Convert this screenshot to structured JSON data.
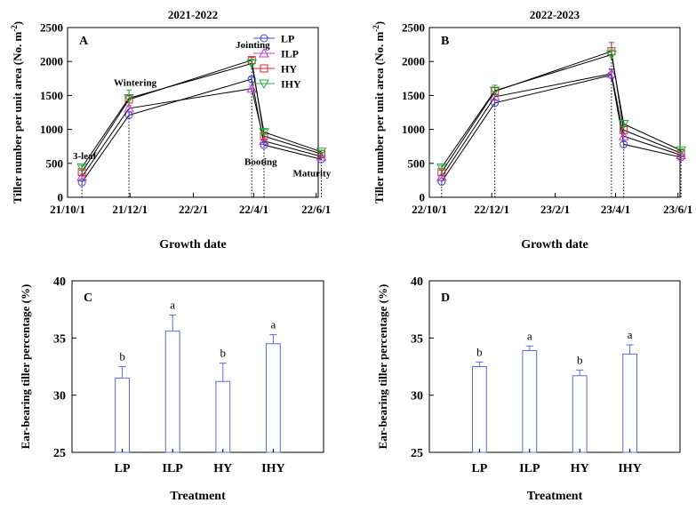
{
  "colors": {
    "LP": "#3b47c4",
    "ILP": "#c43ad1",
    "HY": "#d12a2a",
    "IHY": "#27a83a",
    "bar_stroke": "#5b6bdd",
    "line": "#000000"
  },
  "chart_data": [
    {
      "id": "A",
      "type": "line",
      "panel_label": "A",
      "title": "2021-2022",
      "xlabel": "Growth date",
      "ylabel": "Tiller number per unit area (No. m",
      "ylabel_sup": "-2",
      "ylabel_end": ")",
      "ylim": [
        0,
        2500
      ],
      "yticks": [
        0,
        500,
        1000,
        1500,
        2000,
        2500
      ],
      "xlim": [
        0,
        245
      ],
      "xticks": [
        {
          "day": 0,
          "label": "21/10/1"
        },
        {
          "day": 61,
          "label": "21/12/1"
        },
        {
          "day": 123,
          "label": "22/2/1"
        },
        {
          "day": 182,
          "label": "22/4/1"
        },
        {
          "day": 243,
          "label": "22/6/1"
        }
      ],
      "x": [
        14,
        60,
        180,
        192,
        248
      ],
      "stages": [
        "3-leaf",
        "Wintering",
        "Jointing",
        "Booting",
        "Maturity"
      ],
      "series": [
        {
          "name": "LP",
          "marker": "circle",
          "values": [
            220,
            1210,
            1740,
            770,
            560
          ],
          "errors": [
            20,
            50,
            30,
            30,
            20
          ]
        },
        {
          "name": "ILP",
          "marker": "triangle-up",
          "values": [
            300,
            1310,
            1600,
            830,
            600
          ],
          "errors": [
            20,
            40,
            50,
            30,
            20
          ]
        },
        {
          "name": "HY",
          "marker": "square",
          "values": [
            370,
            1440,
            2020,
            900,
            640
          ],
          "errors": [
            30,
            60,
            40,
            30,
            20
          ]
        },
        {
          "name": "IHY",
          "marker": "triangle-down",
          "values": [
            440,
            1460,
            1970,
            960,
            670
          ],
          "errors": [
            30,
            120,
            60,
            40,
            20
          ]
        }
      ],
      "legend": [
        "LP",
        "ILP",
        "HY",
        "IHY"
      ]
    },
    {
      "id": "B",
      "type": "line",
      "panel_label": "B",
      "title": "2022-2023",
      "xlabel": "Growth date",
      "ylabel": "Tiller number per unit area (No. m",
      "ylabel_sup": "-2",
      "ylabel_end": ")",
      "ylim": [
        0,
        2500
      ],
      "yticks": [
        0,
        500,
        1000,
        1500,
        2000,
        2500
      ],
      "xlim": [
        0,
        245
      ],
      "xticks": [
        {
          "day": 0,
          "label": "22/10/1"
        },
        {
          "day": 61,
          "label": "22/12/1"
        },
        {
          "day": 123,
          "label": "23/2/1"
        },
        {
          "day": 182,
          "label": "23/4/1"
        },
        {
          "day": 243,
          "label": "23/6/1"
        }
      ],
      "x": [
        12,
        64,
        178,
        190,
        246
      ],
      "series": [
        {
          "name": "LP",
          "marker": "circle",
          "values": [
            230,
            1390,
            1800,
            780,
            590
          ],
          "errors": [
            20,
            40,
            90,
            40,
            20
          ]
        },
        {
          "name": "ILP",
          "marker": "triangle-up",
          "values": [
            300,
            1480,
            1820,
            900,
            620
          ],
          "errors": [
            20,
            40,
            60,
            40,
            20
          ]
        },
        {
          "name": "HY",
          "marker": "square",
          "values": [
            370,
            1560,
            2150,
            990,
            650
          ],
          "errors": [
            30,
            60,
            130,
            50,
            20
          ]
        },
        {
          "name": "IHY",
          "marker": "triangle-down",
          "values": [
            440,
            1570,
            2100,
            1080,
            690
          ],
          "errors": [
            30,
            80,
            70,
            50,
            20
          ]
        }
      ]
    },
    {
      "id": "C",
      "type": "bar",
      "panel_label": "C",
      "xlabel": "Treatment",
      "ylabel": "Ear-bearing tiller percentage (%)",
      "ylim": [
        25,
        40
      ],
      "yticks": [
        25,
        30,
        35,
        40
      ],
      "categories": [
        "LP",
        "ILP",
        "HY",
        "IHY"
      ],
      "values": [
        31.5,
        35.6,
        31.2,
        34.5
      ],
      "errors": [
        1.0,
        1.4,
        1.6,
        0.8
      ],
      "sig_letters": [
        "b",
        "a",
        "b",
        "a"
      ]
    },
    {
      "id": "D",
      "type": "bar",
      "panel_label": "D",
      "xlabel": "Treatment",
      "ylabel": "Ear-bearing tiller percentage (%)",
      "ylim": [
        25,
        40
      ],
      "yticks": [
        25,
        30,
        35,
        40
      ],
      "categories": [
        "LP",
        "ILP",
        "HY",
        "IHY"
      ],
      "values": [
        32.5,
        33.9,
        31.7,
        33.6
      ],
      "errors": [
        0.4,
        0.4,
        0.5,
        0.8
      ],
      "sig_letters": [
        "b",
        "a",
        "b",
        "a"
      ]
    }
  ]
}
